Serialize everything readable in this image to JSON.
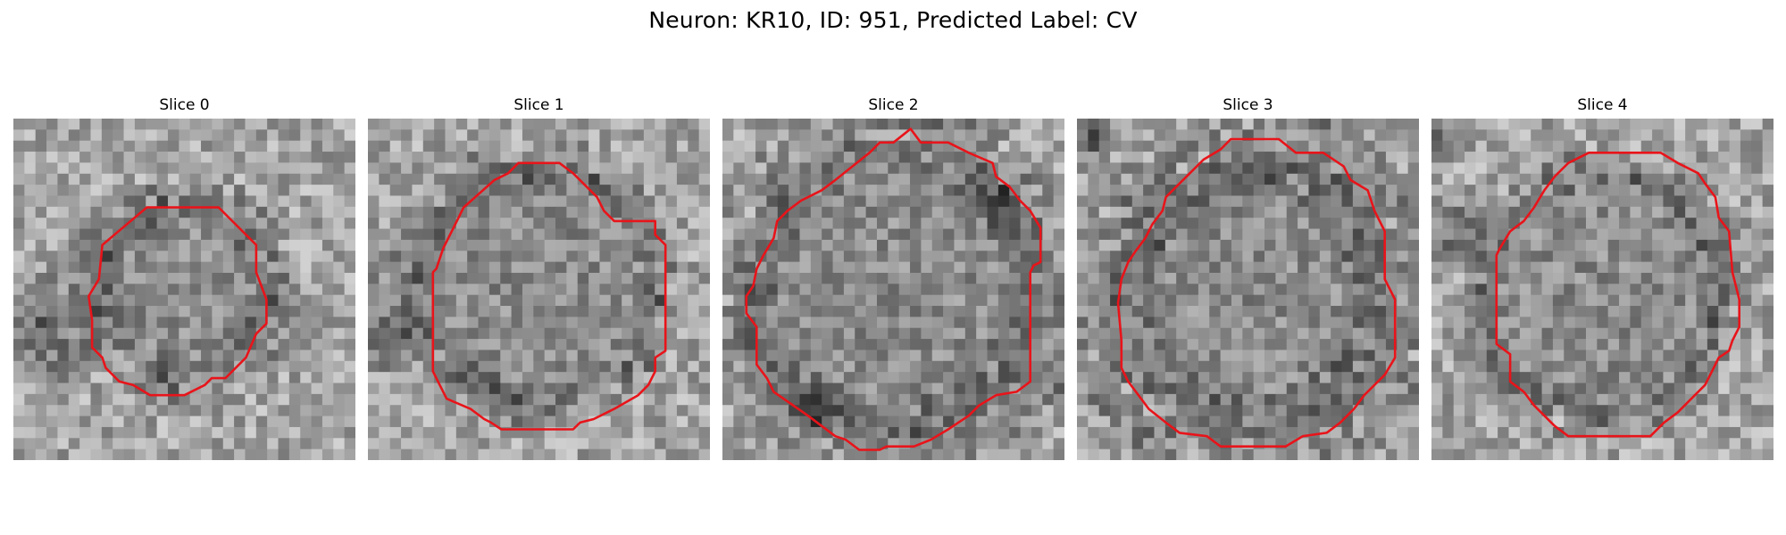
{
  "figure": {
    "title": "Neuron: KR10, ID: 951, Predicted Label: CV"
  },
  "slices": [
    {
      "title": "Slice 0",
      "outline_color": "#e8141a"
    },
    {
      "title": "Slice 1",
      "outline_color": "#e8141a"
    },
    {
      "title": "Slice 2",
      "outline_color": "#e8141a"
    },
    {
      "title": "Slice 3",
      "outline_color": "#e8141a"
    },
    {
      "title": "Slice 4",
      "outline_color": "#e8141a"
    }
  ]
}
